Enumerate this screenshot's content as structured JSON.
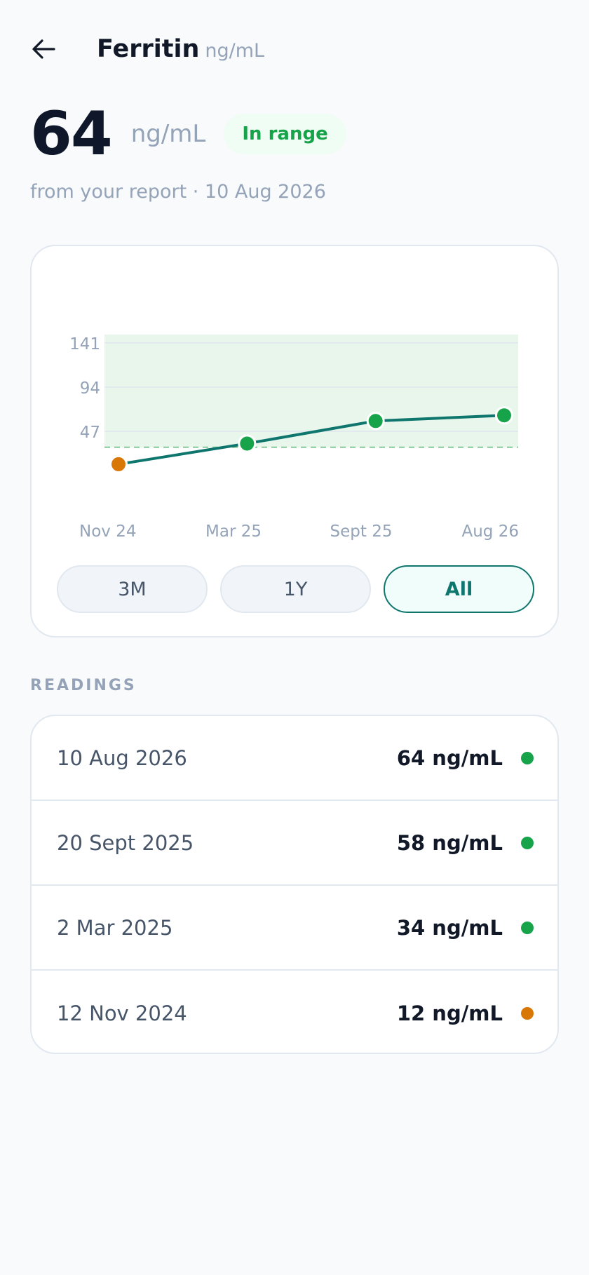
{
  "header": {
    "back_icon": "arrow-left-icon",
    "title": "Ferritin",
    "unit": "ng/mL"
  },
  "summary": {
    "value": "64",
    "unit": "ng/mL",
    "status": "In range",
    "source": "from your report · 10 Aug 2026"
  },
  "colors": {
    "accent": "#0f766e",
    "in_range": "#16a34a",
    "low": "#d97706",
    "range_band": "#e8f6ec"
  },
  "chart_data": {
    "type": "line",
    "x": [
      "Nov 24",
      "Mar 25",
      "Sept 25",
      "Aug 26"
    ],
    "series": [
      {
        "values": [
          12,
          34,
          58,
          64
        ],
        "status": [
          "low",
          "in_range",
          "in_range",
          "in_range"
        ]
      }
    ],
    "y_ticks": [
      47,
      94,
      141
    ],
    "ylim": [
      0,
      150
    ],
    "reference_range": [
      30,
      150
    ],
    "grid": true,
    "title": "",
    "xlabel": "",
    "ylabel": ""
  },
  "range_buttons": [
    {
      "label": "3M",
      "active": false
    },
    {
      "label": "1Y",
      "active": false
    },
    {
      "label": "All",
      "active": true
    }
  ],
  "readings": {
    "section_label": "READINGS",
    "items": [
      {
        "date": "10 Aug 2026",
        "value": "64 ng/mL",
        "status": "in_range"
      },
      {
        "date": "20 Sept 2025",
        "value": "58 ng/mL",
        "status": "in_range"
      },
      {
        "date": "2 Mar 2025",
        "value": "34 ng/mL",
        "status": "in_range"
      },
      {
        "date": "12 Nov 2024",
        "value": "12 ng/mL",
        "status": "low"
      }
    ]
  }
}
